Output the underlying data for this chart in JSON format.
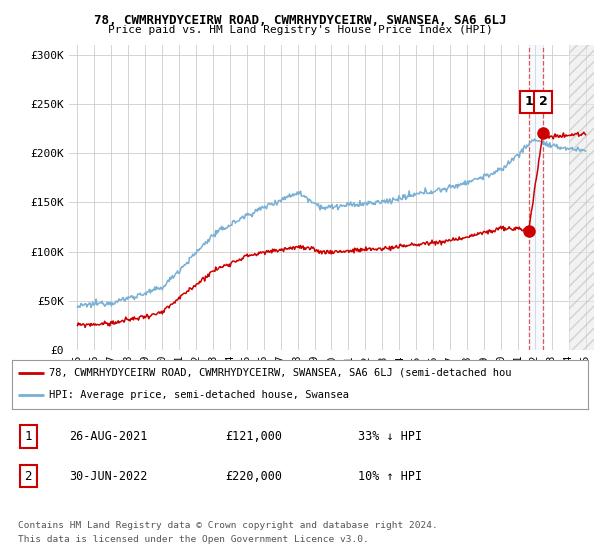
{
  "title_line1": "78, CWMRHYDYCEIRW ROAD, CWMRHYDYCEIRW, SWANSEA, SA6 6LJ",
  "title_line2": "Price paid vs. HM Land Registry's House Price Index (HPI)",
  "ylim": [
    0,
    310000
  ],
  "yticks": [
    0,
    50000,
    100000,
    150000,
    200000,
    250000,
    300000
  ],
  "ytick_labels": [
    "£0",
    "£50K",
    "£100K",
    "£150K",
    "£200K",
    "£250K",
    "£300K"
  ],
  "background_color": "#ffffff",
  "plot_bg_color": "#ffffff",
  "grid_color": "#cccccc",
  "hpi_color": "#7ab0d4",
  "price_color": "#cc0000",
  "vline_color": "#dd4444",
  "shade_color": "#ddeeff",
  "point_color": "#cc0000",
  "legend_line1": "78, CWMRHYDYCEIRW ROAD, CWMRHYDYCEIRW, SWANSEA, SA6 6LJ (semi-detached hou",
  "legend_line2": "HPI: Average price, semi-detached house, Swansea",
  "footer1": "Contains HM Land Registry data © Crown copyright and database right 2024.",
  "footer2": "This data is licensed under the Open Government Licence v3.0.",
  "table_row1": [
    "1",
    "26-AUG-2021",
    "£121,000",
    "33% ↓ HPI"
  ],
  "table_row2": [
    "2",
    "30-JUN-2022",
    "£220,000",
    "10% ↑ HPI"
  ],
  "pt1_year": 2021.65,
  "pt1_price": 121000,
  "pt2_year": 2022.5,
  "pt2_price": 220000,
  "xstart": 1995,
  "xend": 2025
}
